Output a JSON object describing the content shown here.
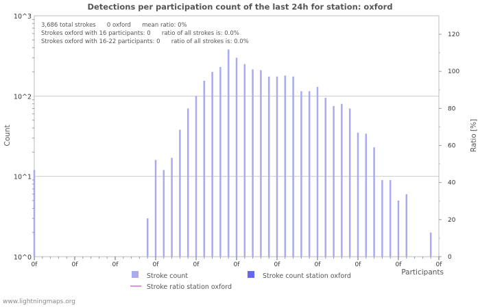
{
  "chart_data": {
    "type": "bar",
    "title": "Detections per participation count of the last 24h for station: oxford",
    "xlabel": "Participants",
    "ylabel": "Count",
    "y2label": "Ratio [%]",
    "yscale": "log",
    "ylim": [
      1,
      1000
    ],
    "y_ticks": [
      "10^0",
      "10^1",
      "10^2",
      "10^3"
    ],
    "y2lim": [
      0,
      130
    ],
    "y2_ticks": [
      0,
      20,
      40,
      60,
      80,
      100,
      120
    ],
    "x_ticks": [
      "0f",
      "0f",
      "0f",
      "0f",
      "0f",
      "0f",
      "0f",
      "0f",
      "0f",
      "0f",
      "0f"
    ],
    "info_lines": [
      "3,686 total strokes      0 oxford      mean ratio: 0%",
      "Strokes oxford with 16 participants: 0      ratio of all strokes is: 0.0%",
      "Strokes oxford with 16-22 participants: 0      ratio of all strokes is: 0.0%"
    ],
    "legend": [
      {
        "label": "Stroke count",
        "color": "#aaaaee",
        "kind": "box"
      },
      {
        "label": "Stroke count station oxford",
        "color": "#6666ee",
        "kind": "box"
      },
      {
        "label": "Stroke ratio station oxford",
        "color": "#dd66dd",
        "kind": "line"
      }
    ],
    "series": [
      {
        "name": "Stroke count",
        "color": "#aaaaee",
        "values": [
          12,
          0,
          0,
          0,
          0,
          0,
          0,
          0,
          0,
          0,
          0,
          0,
          0,
          0,
          3,
          16,
          12,
          17,
          38,
          70,
          100,
          155,
          200,
          230,
          380,
          300,
          250,
          215,
          210,
          175,
          175,
          180,
          175,
          115,
          115,
          130,
          95,
          75,
          80,
          70,
          35,
          34,
          23,
          9,
          9,
          5,
          6,
          1,
          1,
          2,
          1
        ]
      },
      {
        "name": "Stroke count station oxford",
        "color": "#6666ee",
        "values": [
          0,
          0,
          0,
          0,
          0,
          0,
          0,
          0,
          0,
          0,
          0,
          0,
          0,
          0,
          0,
          0,
          0,
          0,
          0,
          0,
          0,
          0,
          0,
          0,
          0,
          0,
          0,
          0,
          0,
          0,
          0,
          0,
          0,
          0,
          0,
          0,
          0,
          0,
          0,
          0,
          0,
          0,
          0,
          0,
          0,
          0,
          0,
          0,
          0,
          0,
          0
        ]
      }
    ]
  },
  "footer": "www.lightningmaps.org"
}
